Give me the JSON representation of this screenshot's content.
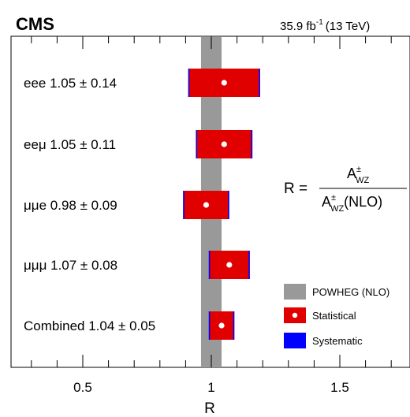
{
  "header": {
    "experiment": "CMS",
    "lumi_value": "35.9 fb",
    "lumi_exp": "-1",
    "energy": "(13 TeV)"
  },
  "formula": {
    "lhs": "R =",
    "num_base": "A",
    "num_sup": "±",
    "num_sub": "WZ",
    "den_base": "A",
    "den_sup": "±",
    "den_sub": "WZ",
    "den_suffix": "(NLO)"
  },
  "chart_data": {
    "type": "summary-ratio",
    "xlabel": "R",
    "xlim": [
      0.25,
      1.75
    ],
    "xticks": [
      0.5,
      1,
      1.5
    ],
    "xtick_labels": [
      "0.5",
      "1",
      "1.5"
    ],
    "reference": {
      "name": "POWHEG (NLO)",
      "center": 1.0,
      "half_width": 0.04,
      "color": "#999999"
    },
    "series_style": {
      "stat_color": "#e00000",
      "syst_color": "#0000ff"
    },
    "channels": [
      {
        "name": "eee",
        "label": "eee 1.05 ± 0.14",
        "value": 1.05,
        "total_unc": 0.14,
        "stat_unc": 0.135
      },
      {
        "name": "eeμ",
        "label": "eeμ 1.05 ± 0.11",
        "value": 1.05,
        "total_unc": 0.11,
        "stat_unc": 0.105
      },
      {
        "name": "μμe",
        "label": "μμe 0.98 ± 0.09",
        "value": 0.98,
        "total_unc": 0.09,
        "stat_unc": 0.085
      },
      {
        "name": "μμμ",
        "label": "μμμ 1.07 ± 0.08",
        "value": 1.07,
        "total_unc": 0.08,
        "stat_unc": 0.075
      },
      {
        "name": "Combined",
        "label": "Combined 1.04 ± 0.05",
        "value": 1.04,
        "total_unc": 0.05,
        "stat_unc": 0.045
      }
    ],
    "legend": [
      {
        "label": "POWHEG (NLO)",
        "kind": "band"
      },
      {
        "label": "Statistical",
        "kind": "stat"
      },
      {
        "label": "Systematic",
        "kind": "syst"
      }
    ]
  }
}
